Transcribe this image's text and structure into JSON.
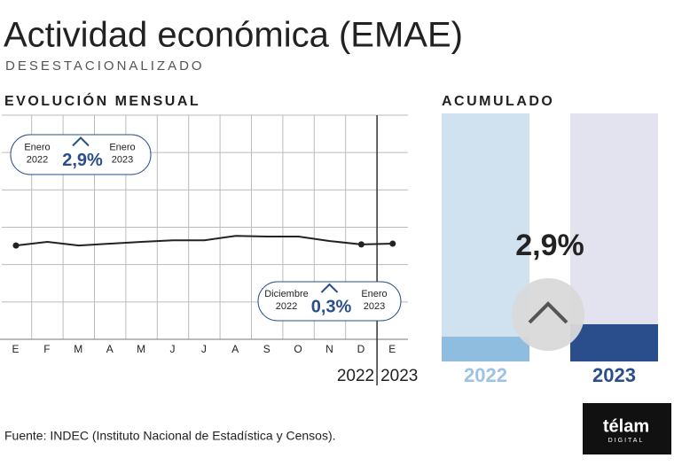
{
  "title": "Actividad económica (EMAE)",
  "subtitle": "DESESTACIONALIZADO",
  "source": "Fuente: INDEC (Instituto Nacional de Estadística y Censos).",
  "logo": {
    "name": "télam",
    "tagline": "DIGITAL"
  },
  "chart_data": [
    {
      "type": "line",
      "title": "EVOLUCIÓN MENSUAL",
      "categories": [
        "E",
        "F",
        "M",
        "A",
        "M",
        "J",
        "J",
        "A",
        "S",
        "O",
        "N",
        "D",
        "E"
      ],
      "values": [
        2.51,
        2.61,
        2.51,
        2.56,
        2.61,
        2.65,
        2.65,
        2.77,
        2.75,
        2.75,
        2.63,
        2.54,
        2.56
      ],
      "ylim": [
        0,
        6
      ],
      "color": "#222222",
      "markers": [
        0,
        11,
        12
      ],
      "years": [
        "2022",
        "2023"
      ],
      "callouts": [
        {
          "from": [
            "Enero",
            "2022"
          ],
          "value": "2,9%",
          "to": [
            "Enero",
            "2023"
          ]
        },
        {
          "from": [
            "Diciembre",
            "2022"
          ],
          "value": "0,3%",
          "to": [
            "Enero",
            "2023"
          ]
        }
      ]
    },
    {
      "type": "bar",
      "title": "ACUMULADO",
      "categories": [
        "2022",
        "2023"
      ],
      "values": [
        10,
        15
      ],
      "ylim": [
        0,
        100
      ],
      "colors": [
        "#8fbde0",
        "#2a4d8c"
      ],
      "backgrounds": [
        "#d0e1ef",
        "#e2e3ef"
      ],
      "label_colors": [
        "#9cc3e3",
        "#2a4d8c"
      ],
      "annotation": "2,9%"
    }
  ]
}
